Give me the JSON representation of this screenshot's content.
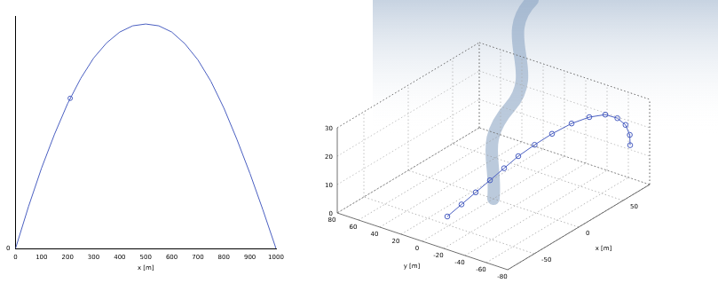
{
  "chart_data": [
    {
      "type": "line",
      "xlabel": "x [m]",
      "x": [
        0,
        50,
        100,
        150,
        200,
        250,
        300,
        350,
        400,
        450,
        500,
        550,
        600,
        650,
        700,
        750,
        800,
        850,
        900,
        950,
        1000
      ],
      "values": [
        0,
        47,
        90,
        128,
        162,
        190,
        213,
        230,
        242,
        249,
        251,
        249,
        242,
        229,
        211,
        187,
        157,
        122,
        84,
        43,
        0
      ],
      "highlight": {
        "x": 210,
        "y": 168
      },
      "color": "#4a5fc1",
      "xlim": [
        0,
        1000
      ],
      "xticks": [
        0,
        100,
        200,
        300,
        400,
        500,
        600,
        700,
        800,
        900,
        1000
      ],
      "ylim": [
        0,
        260
      ],
      "yticks": [
        0
      ],
      "grid": false
    },
    {
      "type": "scatter3d",
      "xlabel": "x [m]",
      "ylabel": "y [m]",
      "x": [
        -40,
        -30,
        -20,
        -10,
        0,
        10,
        20,
        30,
        40,
        48,
        54,
        58,
        60,
        60,
        58
      ],
      "y": [
        10,
        5,
        0,
        -5,
        -10,
        -15,
        -22,
        -30,
        -40,
        -50,
        -60,
        -68,
        -74,
        -78,
        -80
      ],
      "z": [
        0,
        3,
        6,
        9,
        12,
        15,
        18,
        21,
        24,
        26,
        27,
        26,
        24,
        21,
        18
      ],
      "color": "#4a5fc1",
      "marker": "circle",
      "xlim": [
        -80,
        80
      ],
      "xticks": [
        -50,
        0,
        50
      ],
      "ylim": [
        -80,
        80
      ],
      "yticks": [
        80,
        60,
        40,
        20,
        0,
        -20,
        -40,
        -60,
        -80
      ],
      "zlim": [
        0,
        30
      ],
      "zticks": [
        0,
        10,
        20,
        30
      ],
      "grid": true
    }
  ]
}
